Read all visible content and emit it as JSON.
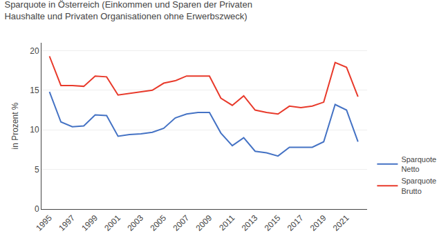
{
  "chart_data": {
    "type": "line",
    "title": "Sparquote in Österreich (Einkommen und Sparen der Privaten\nHaushalte und Privaten Organisationen ohne Erwerbszweck)",
    "ylabel": "in Prozent %",
    "x": [
      1995,
      1996,
      1997,
      1998,
      1999,
      2000,
      2001,
      2002,
      2003,
      2004,
      2005,
      2006,
      2007,
      2008,
      2009,
      2010,
      2011,
      2012,
      2013,
      2014,
      2015,
      2016,
      2017,
      2018,
      2019,
      2020,
      2021,
      2022
    ],
    "series": [
      {
        "name": "Sparquote\nNetto",
        "color": "#4472C4",
        "values": [
          14.8,
          11.0,
          10.4,
          10.5,
          11.9,
          11.8,
          9.2,
          9.4,
          9.5,
          9.7,
          10.2,
          11.5,
          12.0,
          12.2,
          12.2,
          9.6,
          8.0,
          9.0,
          7.3,
          7.1,
          6.7,
          7.8,
          7.8,
          7.8,
          8.5,
          13.2,
          12.5,
          8.5
        ]
      },
      {
        "name": "Sparquote\nBrutto",
        "color": "#E8392A",
        "values": [
          19.3,
          15.6,
          15.6,
          15.5,
          16.8,
          16.7,
          14.4,
          14.6,
          14.8,
          15.0,
          15.9,
          16.2,
          16.8,
          16.8,
          16.8,
          14.0,
          13.1,
          14.3,
          12.5,
          12.2,
          12.0,
          13.0,
          12.8,
          13.0,
          13.5,
          18.5,
          17.9,
          14.2
        ]
      }
    ],
    "xlim": [
      1994.3,
      2022.8
    ],
    "xticks": [
      1995,
      1997,
      1999,
      2001,
      2003,
      2005,
      2007,
      2009,
      2011,
      2013,
      2015,
      2017,
      2019,
      2021
    ],
    "ylim": [
      0,
      21
    ],
    "yticks": [
      0,
      5,
      10,
      15,
      20
    ],
    "grid": true,
    "legend": "lower right"
  }
}
